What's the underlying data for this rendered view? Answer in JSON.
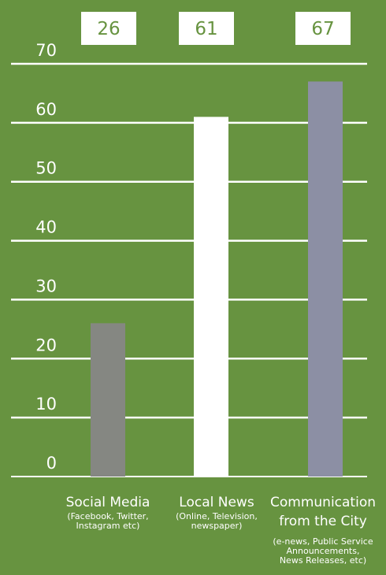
{
  "chart_data": {
    "type": "bar",
    "ylim": [
      0,
      70
    ],
    "yticks": [
      0,
      10,
      20,
      30,
      40,
      50,
      60,
      70
    ],
    "grid": true,
    "categories": [
      {
        "label_lines": [
          "Social Media"
        ],
        "sublabel_lines": [
          "(Facebook, Twitter,",
          "Instagram etc)"
        ],
        "value": 26,
        "value_label": "26",
        "color": "#858782"
      },
      {
        "label_lines": [
          "Local News"
        ],
        "sublabel_lines": [
          "(Online, Television,",
          "newspaper)"
        ],
        "value": 61,
        "value_label": "61",
        "color": "#ffffff"
      },
      {
        "label_lines": [
          "Communication",
          "from the City"
        ],
        "sublabel_lines": [
          "(e-news, Public Service",
          "Announcements,",
          "News Releases, etc)"
        ],
        "value": 67,
        "value_label": "67",
        "color": "#8c8fa4"
      }
    ]
  }
}
